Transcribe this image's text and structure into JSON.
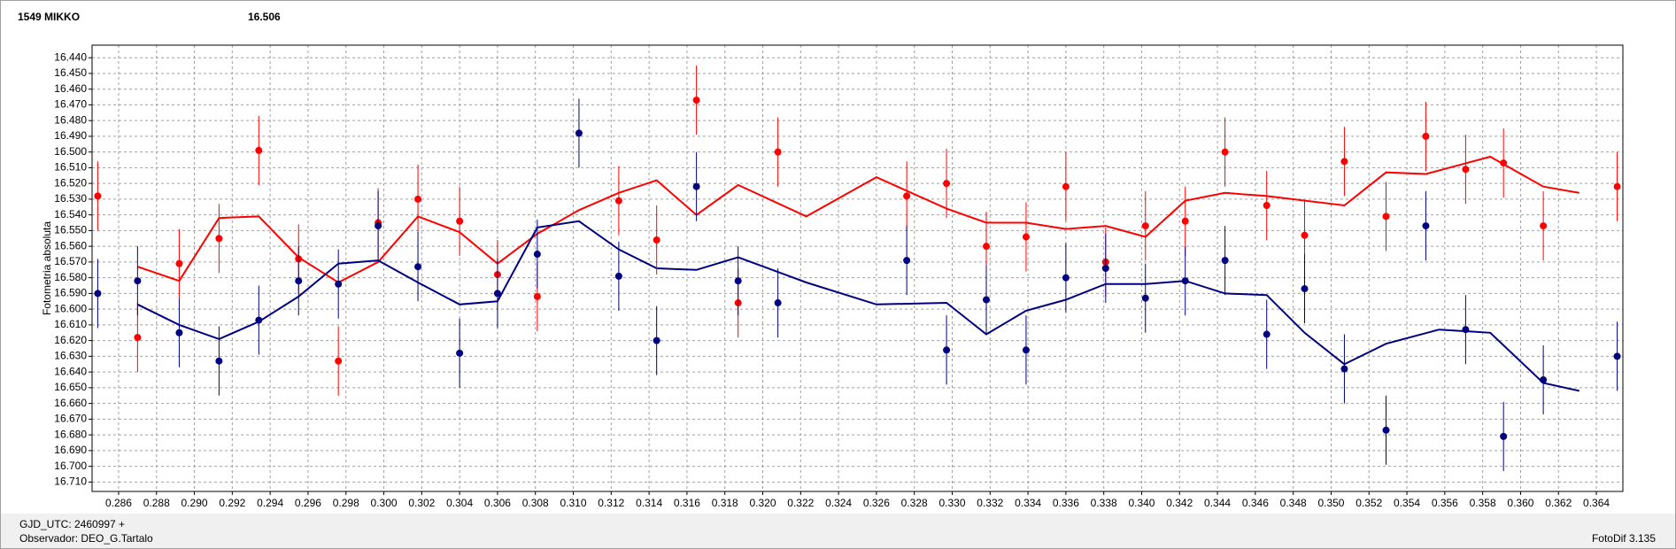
{
  "chart_data": {
    "type": "scatter",
    "title": "1549 MIKKO",
    "subtitle": "16.506",
    "ylabel": "Fotometria absoluta",
    "title_color": "#ff0000",
    "subtitle_color": "#000080",
    "xlim": [
      0.2846,
      0.3654
    ],
    "ylim": [
      16.432,
      16.716
    ],
    "y_inverted": true,
    "grid": true,
    "xticks": [
      0.286,
      0.288,
      {
        "value": 0.29,
        "label": "0.290"
      },
      0.292,
      0.294,
      0.296,
      0.298,
      {
        "value": 0.3,
        "label": "0.300"
      },
      0.302,
      0.304,
      0.306,
      0.308,
      {
        "value": 0.31,
        "label": "0.310"
      },
      0.312,
      0.314,
      0.316,
      0.318,
      {
        "value": 0.32,
        "label": "0.320"
      },
      0.322,
      0.324,
      0.326,
      0.328,
      {
        "value": 0.33,
        "label": "0.330"
      },
      0.332,
      0.334,
      0.336,
      0.338,
      {
        "value": 0.34,
        "label": "0.340"
      },
      0.342,
      0.344,
      0.346,
      0.348,
      {
        "value": 0.35,
        "label": "0.350"
      },
      0.352,
      0.354,
      0.356,
      0.358,
      {
        "value": 0.36,
        "label": "0.360"
      },
      0.362,
      0.364
    ],
    "yticks": [
      {
        "value": 16.44,
        "label": "16.440"
      },
      {
        "value": 16.45,
        "label": "16.450"
      },
      {
        "value": 16.46,
        "label": "16.460"
      },
      {
        "value": 16.47,
        "label": "16.470"
      },
      {
        "value": 16.48,
        "label": "16.480"
      },
      {
        "value": 16.49,
        "label": "16.490"
      },
      {
        "value": 16.5,
        "label": "16.500"
      },
      {
        "value": 16.51,
        "label": "16.510"
      },
      {
        "value": 16.52,
        "label": "16.520"
      },
      {
        "value": 16.53,
        "label": "16.530"
      },
      {
        "value": 16.54,
        "label": "16.540"
      },
      {
        "value": 16.55,
        "label": "16.550"
      },
      {
        "value": 16.56,
        "label": "16.560"
      },
      {
        "value": 16.57,
        "label": "16.570"
      },
      {
        "value": 16.58,
        "label": "16.580"
      },
      {
        "value": 16.59,
        "label": "16.590"
      },
      {
        "value": 16.6,
        "label": "16.600"
      },
      {
        "value": 16.61,
        "label": "16.610"
      },
      {
        "value": 16.62,
        "label": "16.620"
      },
      {
        "value": 16.63,
        "label": "16.630"
      },
      {
        "value": 16.64,
        "label": "16.640"
      },
      {
        "value": 16.65,
        "label": "16.650"
      },
      {
        "value": 16.66,
        "label": "16.660"
      },
      {
        "value": 16.67,
        "label": "16.670"
      },
      {
        "value": 16.68,
        "label": "16.680"
      },
      {
        "value": 16.69,
        "label": "16.690"
      },
      {
        "value": 16.7,
        "label": "16.700"
      },
      {
        "value": 16.71,
        "label": "16.710"
      }
    ],
    "x": [
      0.2849,
      0.287,
      0.2892,
      0.2913,
      0.2934,
      0.2955,
      0.2976,
      0.2997,
      0.3018,
      0.304,
      0.306,
      0.3081,
      0.3103,
      0.3124,
      0.3144,
      0.3165,
      0.3187,
      0.3208,
      0.3276,
      0.3297,
      0.3318,
      0.3339,
      0.336,
      0.3381,
      0.3402,
      0.3423,
      0.3444,
      0.3466,
      0.3486,
      0.3507,
      0.3529,
      0.355,
      0.3571,
      0.3591,
      0.3612,
      0.3651
    ],
    "series": [
      {
        "color": "#ff0000",
        "error": 0.022,
        "values": [
          16.528,
          16.618,
          16.571,
          16.555,
          16.499,
          16.568,
          16.633,
          16.545,
          16.53,
          16.544,
          16.578,
          16.592,
          null,
          16.531,
          16.556,
          16.467,
          16.596,
          16.5,
          16.528,
          16.52,
          16.56,
          16.554,
          16.522,
          16.57,
          16.547,
          16.544,
          16.5,
          16.534,
          16.553,
          16.506,
          16.541,
          16.49,
          16.511,
          16.507,
          16.547,
          16.522
        ]
      },
      {
        "color": "#000080",
        "error": 0.022,
        "values": [
          16.59,
          16.582,
          16.615,
          16.633,
          16.607,
          16.582,
          16.584,
          16.547,
          16.573,
          16.628,
          16.59,
          16.565,
          16.488,
          16.579,
          16.62,
          16.522,
          16.582,
          16.596,
          16.569,
          16.626,
          16.594,
          16.626,
          16.58,
          16.574,
          16.593,
          16.582,
          16.569,
          16.616,
          16.587,
          16.638,
          16.677,
          16.547,
          16.613,
          16.681,
          16.645,
          16.63
        ]
      }
    ],
    "lines": [
      {
        "color": "#ff0000",
        "x": [
          0.287,
          0.2892,
          0.2913,
          0.2934,
          0.2955,
          0.2976,
          0.2997,
          0.3018,
          0.304,
          0.306,
          0.3081,
          0.3103,
          0.3124,
          0.3144,
          0.3165,
          0.3187,
          0.3223,
          0.326,
          0.3297,
          0.3318,
          0.3339,
          0.336,
          0.3381,
          0.3402,
          0.3423,
          0.3444,
          0.3466,
          0.3507,
          0.3529,
          0.355,
          0.3584,
          0.3612,
          0.3631
        ],
        "values": [
          16.573,
          16.582,
          16.542,
          16.541,
          16.567,
          16.583,
          16.57,
          16.541,
          16.551,
          16.571,
          16.552,
          16.537,
          16.526,
          16.518,
          16.54,
          16.521,
          16.541,
          16.516,
          16.536,
          16.545,
          16.545,
          16.549,
          16.547,
          16.554,
          16.531,
          16.526,
          16.528,
          16.534,
          16.513,
          16.514,
          16.503,
          16.522,
          16.526
        ]
      },
      {
        "color": "#000080",
        "x": [
          0.287,
          0.2892,
          0.2913,
          0.2934,
          0.2955,
          0.2976,
          0.2997,
          0.3018,
          0.304,
          0.306,
          0.3081,
          0.3103,
          0.3124,
          0.3144,
          0.3165,
          0.3187,
          0.3223,
          0.326,
          0.3297,
          0.3318,
          0.3339,
          0.336,
          0.3381,
          0.3402,
          0.3423,
          0.3444,
          0.3466,
          0.3486,
          0.3507,
          0.3529,
          0.3557,
          0.3584,
          0.3612,
          0.3631
        ],
        "values": [
          16.597,
          16.61,
          16.619,
          16.608,
          16.592,
          16.571,
          16.569,
          16.583,
          16.597,
          16.595,
          16.548,
          16.544,
          16.562,
          16.574,
          16.575,
          16.567,
          16.583,
          16.597,
          16.596,
          16.616,
          16.601,
          16.594,
          16.584,
          16.584,
          16.582,
          16.59,
          16.591,
          16.615,
          16.635,
          16.622,
          16.613,
          16.615,
          16.647,
          16.652
        ]
      }
    ]
  },
  "footer": {
    "gjd": "GJD_UTC: 2460997 +",
    "observer": "Observador: DEO_G.Tartalo",
    "software": "FotoDif 3.135"
  }
}
